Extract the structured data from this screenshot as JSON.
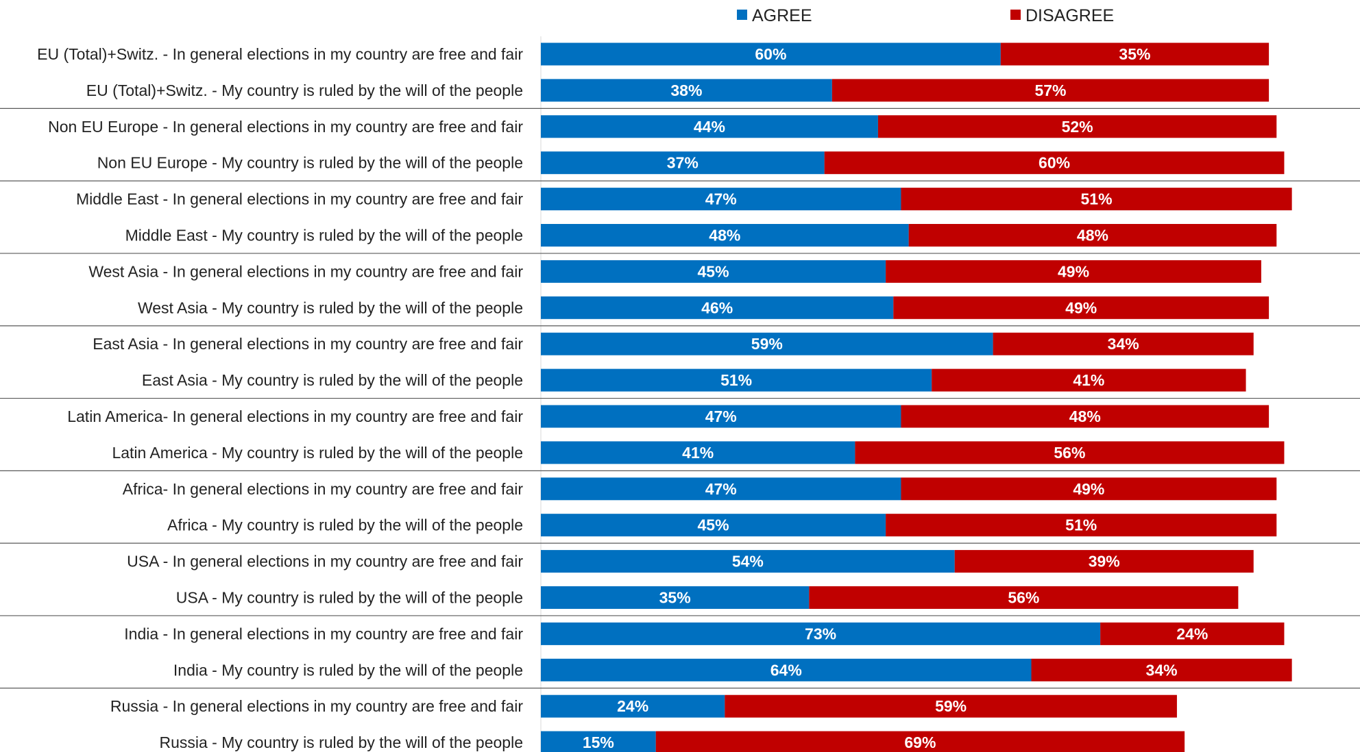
{
  "chart_data": {
    "type": "bar",
    "orientation": "horizontal",
    "stacked": true,
    "legend_position": "top",
    "grid": false,
    "xlim": [
      0,
      100
    ],
    "value_suffix": "%",
    "categories": [
      "EU (Total)+Switz. - In general elections in my country are free and fair",
      "EU (Total)+Switz. - My country is ruled by the will of the people",
      "Non EU Europe - In general elections in my country are free and fair",
      "Non EU Europe - My country is ruled by the will of the people",
      "Middle East - In general elections in my country are free and fair",
      "Middle East - My country is ruled by the will of the people",
      "West Asia - In general elections in my country are free and fair",
      "West Asia - My country is ruled by the will of the people",
      "East Asia - In general elections in my country are free and fair",
      "East Asia - My country is ruled by the will of the people",
      "Latin America- In general elections in my country are free and fair",
      "Latin America - My country is ruled by the will of the people",
      "Africa- In general elections in my country are free and fair",
      "Africa - My country is ruled by the will of the people",
      "USA - In general elections in my country are free and fair",
      "USA - My country is ruled by the will of the people",
      "India - In general elections in my country are free and fair",
      "India - My country is ruled by the will of the people",
      "Russia - In general elections in my country are free and fair",
      "Russia - My country is ruled by the will of the people"
    ],
    "series": [
      {
        "name": "AGREE",
        "color": "#0070c0",
        "values": [
          60,
          38,
          44,
          37,
          47,
          48,
          45,
          46,
          59,
          51,
          47,
          41,
          47,
          45,
          54,
          35,
          73,
          64,
          24,
          15
        ]
      },
      {
        "name": "DISAGREE",
        "color": "#c00000",
        "values": [
          35,
          57,
          52,
          60,
          51,
          48,
          49,
          49,
          34,
          41,
          48,
          56,
          49,
          51,
          39,
          56,
          24,
          34,
          59,
          69
        ]
      }
    ]
  }
}
